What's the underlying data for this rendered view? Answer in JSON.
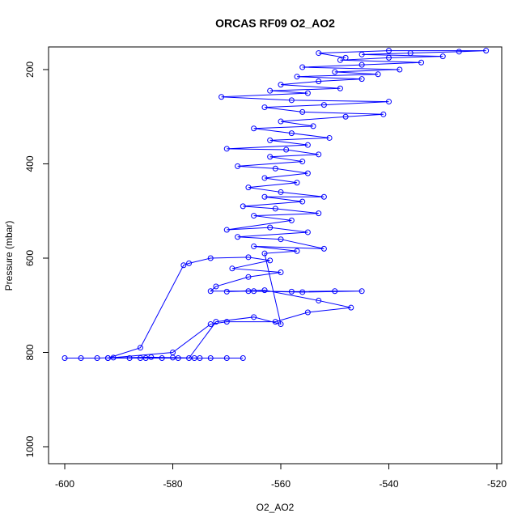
{
  "chart_data": {
    "type": "line",
    "title": "ORCAS RF09 O2_AO2",
    "x_label": "O2_AO2",
    "y_label": "Pressure (mbar)",
    "color": "#0000ff",
    "markers": "circle",
    "y_reversed": true,
    "xlim": [
      -603,
      -519.1
    ],
    "ylim": [
      152,
      1036
    ],
    "xticks": [
      -600,
      -580,
      -560,
      -540,
      -520
    ],
    "yticks": [
      200,
      400,
      600,
      800,
      1000
    ],
    "x": [
      -600,
      -597,
      -594,
      -591,
      -588,
      -585,
      -582,
      -579,
      -576,
      -573,
      -570,
      -567,
      -575,
      -580,
      -586,
      -592,
      -586,
      -578,
      -577,
      -573,
      -566,
      -562,
      -569,
      -560,
      -566,
      -572,
      -573,
      -565,
      -558,
      -550,
      -545,
      -556,
      -566,
      -570,
      -563,
      -553,
      -547,
      -555,
      -561,
      -570,
      -573,
      -580,
      -592,
      -584,
      -577,
      -572,
      -565,
      -560,
      -563,
      -557,
      -565,
      -552,
      -560,
      -568,
      -555,
      -562,
      -570,
      -558,
      -565,
      -553,
      -561,
      -567,
      -556,
      -563,
      -552,
      -560,
      -566,
      -557,
      -563,
      -555,
      -561,
      -568,
      -556,
      -562,
      -553,
      -559,
      -570,
      -555,
      -562,
      -551,
      -558,
      -565,
      -554,
      -560,
      -548,
      -541,
      -556,
      -563,
      -552,
      -540,
      -558,
      -571,
      -555,
      -562,
      -549,
      -560,
      -553,
      -545,
      -557,
      -542,
      -550,
      -538,
      -556,
      -545,
      -534,
      -549,
      -540,
      -530,
      -545,
      -536,
      -527,
      -522,
      -540,
      -553,
      -548
    ],
    "values": [
      812,
      812,
      812,
      811,
      812,
      812,
      812,
      812,
      812,
      812,
      812,
      812,
      812,
      811,
      812,
      812,
      790,
      615,
      611,
      600,
      598,
      605,
      622,
      630,
      640,
      660,
      670,
      670,
      671,
      670,
      670,
      672,
      670,
      671,
      668,
      690,
      705,
      715,
      735,
      735,
      740,
      800,
      812,
      810,
      812,
      735,
      725,
      740,
      590,
      585,
      575,
      580,
      560,
      555,
      545,
      535,
      540,
      520,
      510,
      505,
      495,
      490,
      480,
      470,
      470,
      460,
      450,
      440,
      430,
      420,
      410,
      405,
      395,
      385,
      380,
      370,
      368,
      360,
      350,
      345,
      335,
      325,
      320,
      310,
      300,
      295,
      290,
      280,
      275,
      268,
      265,
      258,
      250,
      245,
      240,
      232,
      225,
      220,
      215,
      210,
      205,
      200,
      195,
      190,
      185,
      180,
      175,
      172,
      168,
      165,
      162,
      160,
      160,
      165,
      175
    ]
  }
}
